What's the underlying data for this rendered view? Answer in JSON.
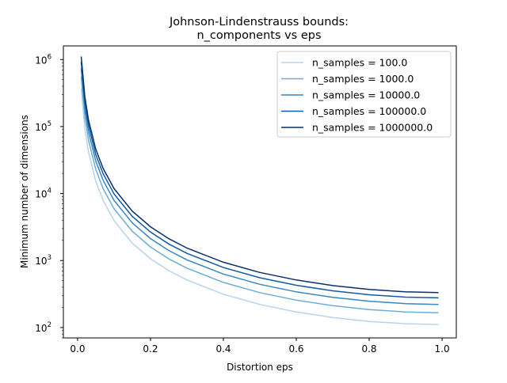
{
  "chart_data": {
    "type": "line",
    "title": [
      "Johnson-Lindenstrauss bounds:",
      "n_components vs eps"
    ],
    "xlabel": "Distortion eps",
    "ylabel": "Minimum number of dimensions",
    "xlim": [
      -0.039,
      1.039
    ],
    "ylim": [
      70,
      1600000
    ],
    "yscale": "log",
    "grid": false,
    "legend_position": "top-right",
    "x_ticks": [
      "0.0",
      "0.2",
      "0.4",
      "0.6",
      "0.8",
      "1.0"
    ],
    "y_ticks": [
      {
        "base": "10",
        "exp": "2"
      },
      {
        "base": "10",
        "exp": "3"
      },
      {
        "base": "10",
        "exp": "4"
      },
      {
        "base": "10",
        "exp": "5"
      },
      {
        "base": "10",
        "exp": "6"
      }
    ],
    "x": [
      0.01,
      0.02,
      0.03,
      0.05,
      0.07,
      0.1,
      0.15,
      0.2,
      0.25,
      0.3,
      0.4,
      0.5,
      0.6,
      0.7,
      0.8,
      0.9,
      0.99
    ],
    "series": [
      {
        "name": "n_samples = 100.0",
        "color": "#b7d4ea",
        "values": [
          370885,
          93348,
          41771,
          15245,
          7887,
          3947,
          1819,
          1063,
          707,
          512,
          314,
          221,
          171,
          141,
          123,
          114,
          111
        ]
      },
      {
        "name": "n_samples = 1000.0",
        "color": "#6aaed6",
        "values": [
          556327,
          140022,
          62657,
          22868,
          11830,
          5921,
          2729,
          1594,
          1061,
          768,
          471,
          332,
          256,
          212,
          185,
          171,
          166
        ]
      },
      {
        "name": "n_samples = 10000.0",
        "color": "#3787c0",
        "values": [
          741770,
          186696,
          83542,
          30490,
          15773,
          7895,
          3639,
          2125,
          1415,
          1023,
          628,
          442,
          341,
          282,
          247,
          227,
          221
        ]
      },
      {
        "name": "n_samples = 100000.0",
        "color": "#105ba4",
        "values": [
          927213,
          233370,
          104428,
          38113,
          19717,
          9868,
          4548,
          2657,
          1768,
          1279,
          785,
          553,
          427,
          353,
          308,
          284,
          277
        ]
      },
      {
        "name": "n_samples = 1000000.0",
        "color": "#08306b",
        "values": [
          1112655,
          280044,
          125313,
          45735,
          23660,
          11842,
          5458,
          3188,
          2122,
          1535,
          942,
          663,
          512,
          423,
          370,
          341,
          332
        ]
      }
    ]
  }
}
